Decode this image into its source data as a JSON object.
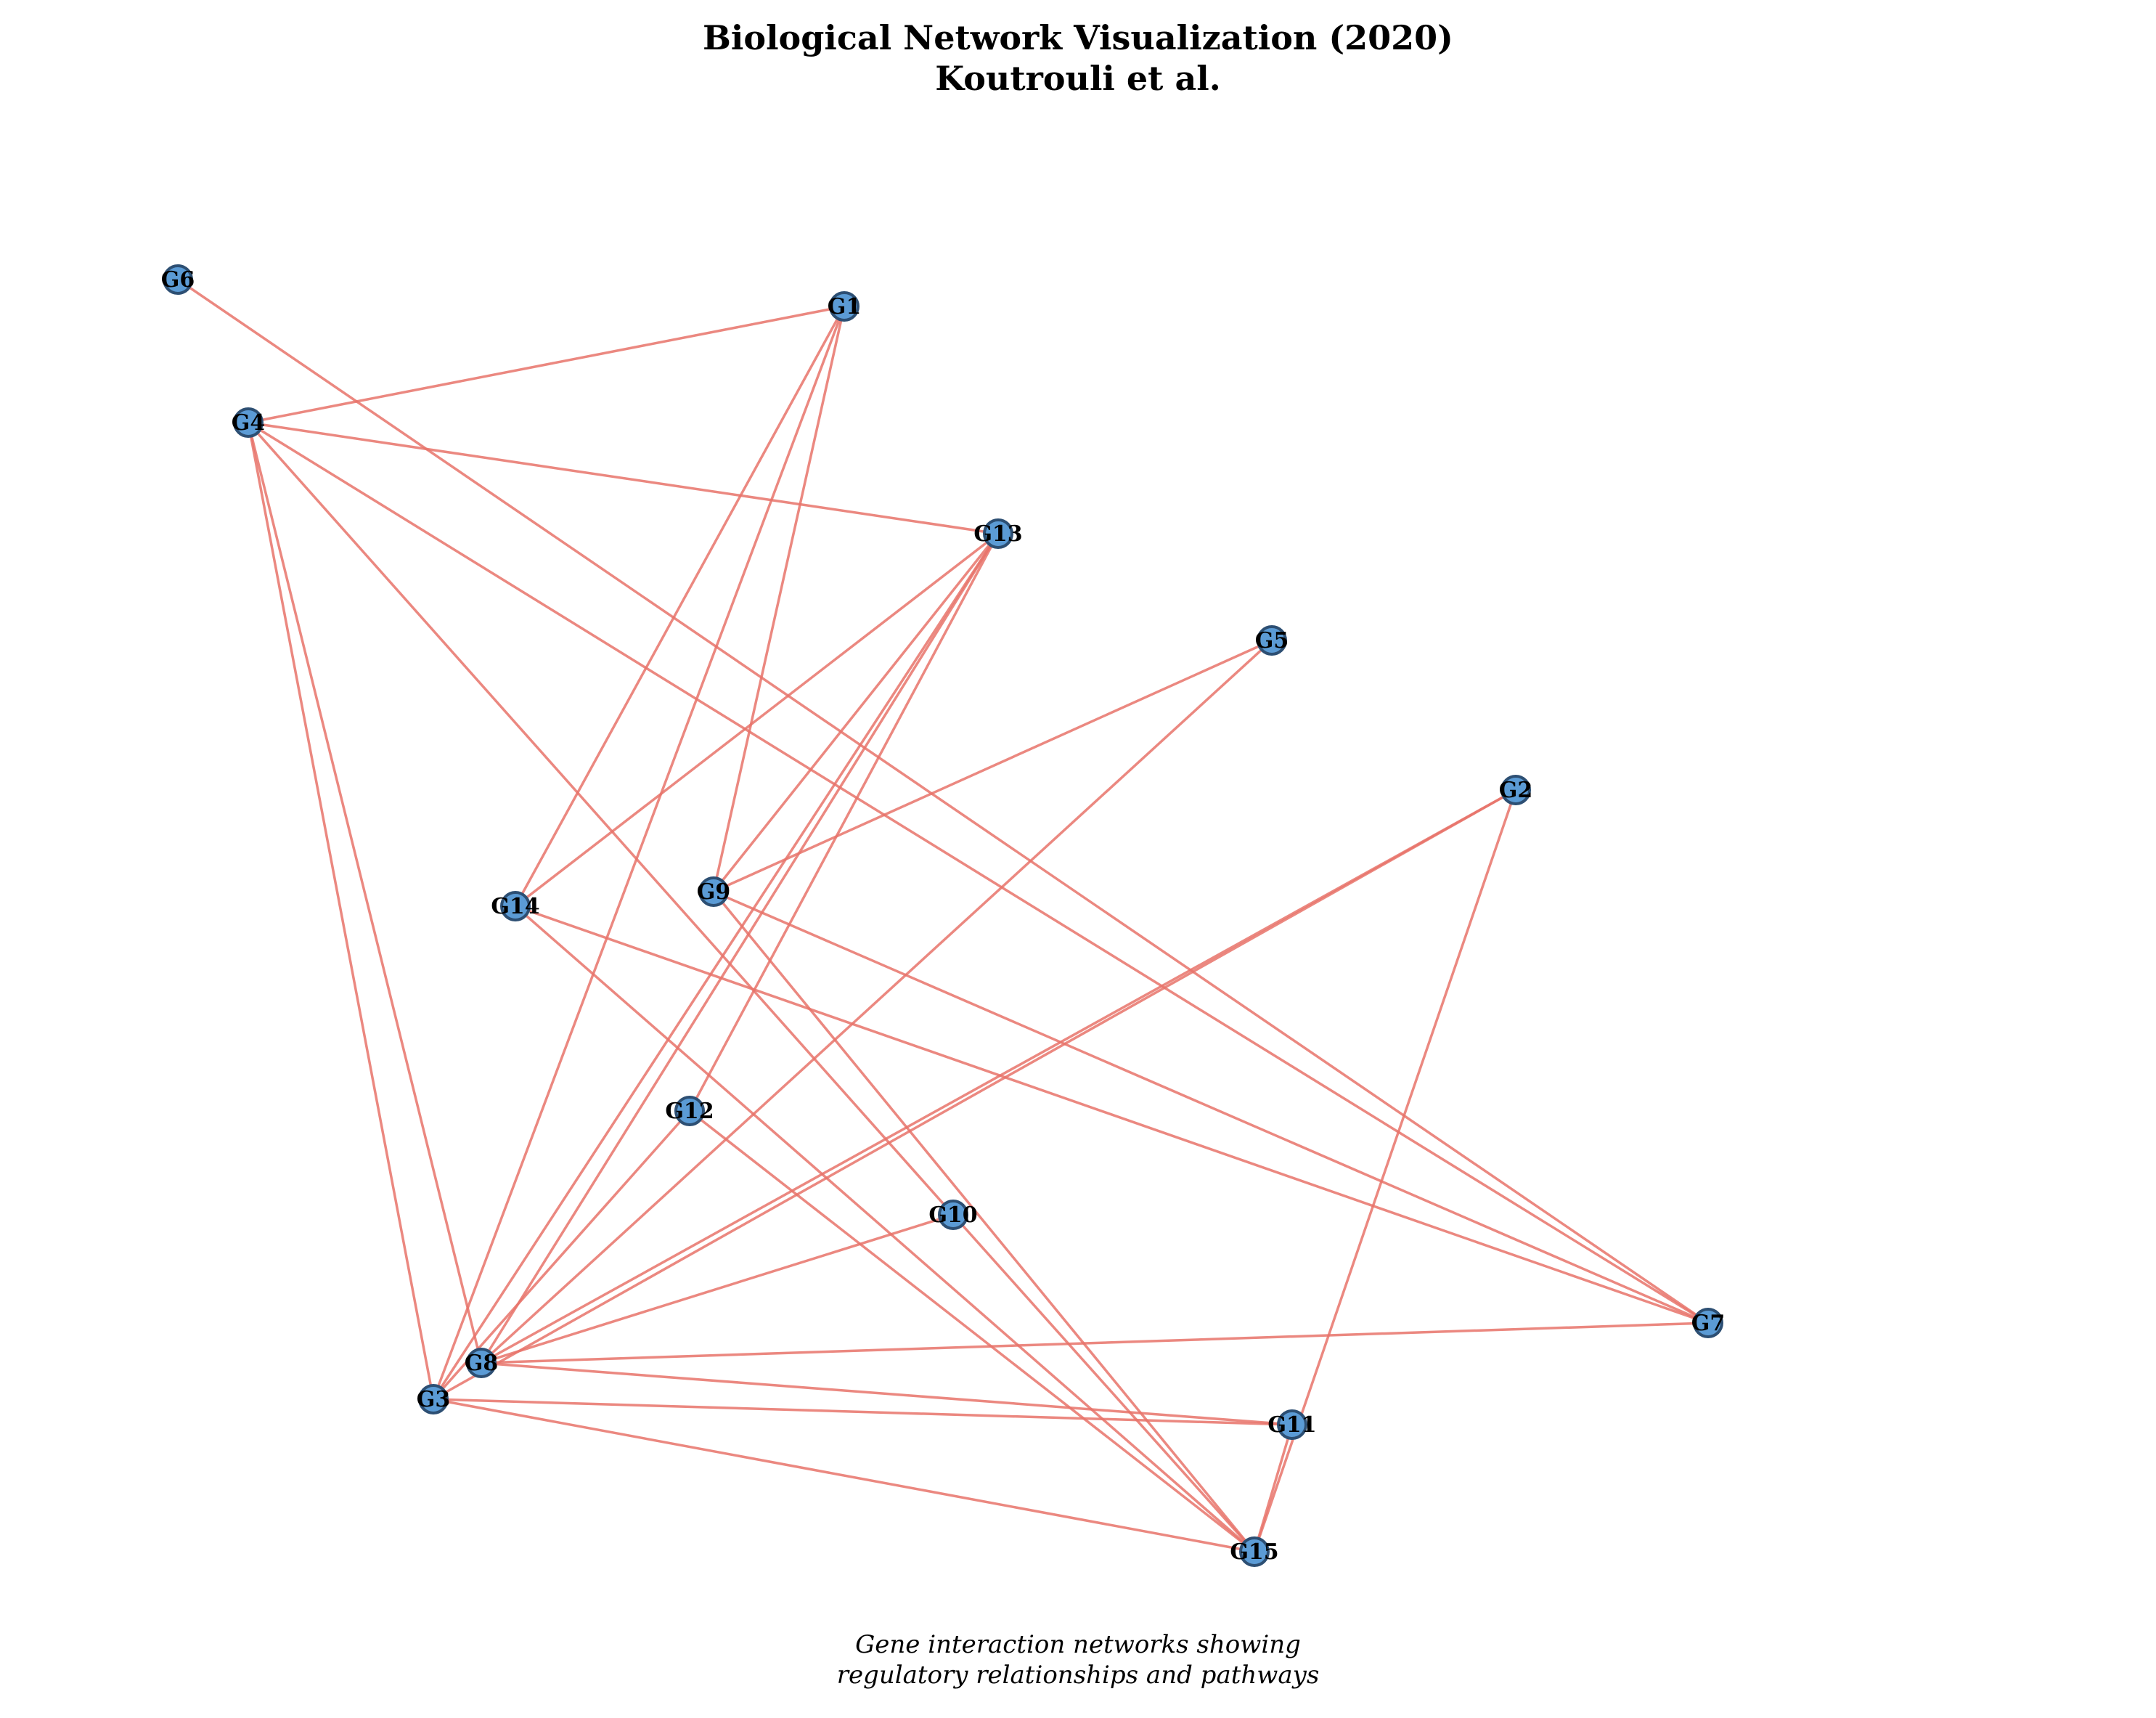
{
  "title": {
    "line1": "Biological Network Visualization (2020)",
    "line2": "Koutrouli et al."
  },
  "caption": {
    "line1": "Gene interaction networks showing",
    "line2": "regulatory relationships and pathways"
  },
  "colors": {
    "node_fill": "#5b9bd5",
    "node_stroke": "#2d4f73",
    "edge": "#e8736a"
  },
  "nodes": [
    {
      "id": "G1"
    },
    {
      "id": "G2"
    },
    {
      "id": "G3"
    },
    {
      "id": "G4"
    },
    {
      "id": "G5"
    },
    {
      "id": "G6"
    },
    {
      "id": "G7"
    },
    {
      "id": "G8"
    },
    {
      "id": "G9"
    },
    {
      "id": "G10"
    },
    {
      "id": "G11"
    },
    {
      "id": "G12"
    },
    {
      "id": "G13"
    },
    {
      "id": "G14"
    },
    {
      "id": "G15"
    }
  ],
  "edges": [
    [
      "G4",
      "G1"
    ],
    [
      "G1",
      "G14"
    ],
    [
      "G1",
      "G3"
    ],
    [
      "G1",
      "G9"
    ],
    [
      "G4",
      "G13"
    ],
    [
      "G4",
      "G3"
    ],
    [
      "G4",
      "G8"
    ],
    [
      "G4",
      "G10"
    ],
    [
      "G4",
      "G7"
    ],
    [
      "G6",
      "G7"
    ],
    [
      "G13",
      "G14"
    ],
    [
      "G13",
      "G9"
    ],
    [
      "G13",
      "G8"
    ],
    [
      "G13",
      "G3"
    ],
    [
      "G13",
      "G12"
    ],
    [
      "G5",
      "G9"
    ],
    [
      "G5",
      "G8"
    ],
    [
      "G2",
      "G8"
    ],
    [
      "G2",
      "G3"
    ],
    [
      "G2",
      "G15"
    ],
    [
      "G9",
      "G7"
    ],
    [
      "G9",
      "G15"
    ],
    [
      "G14",
      "G7"
    ],
    [
      "G14",
      "G15"
    ],
    [
      "G12",
      "G3"
    ],
    [
      "G12",
      "G15"
    ],
    [
      "G10",
      "G8"
    ],
    [
      "G10",
      "G15"
    ],
    [
      "G8",
      "G7"
    ],
    [
      "G8",
      "G11"
    ],
    [
      "G3",
      "G11"
    ],
    [
      "G3",
      "G15"
    ],
    [
      "G11",
      "G15"
    ]
  ]
}
